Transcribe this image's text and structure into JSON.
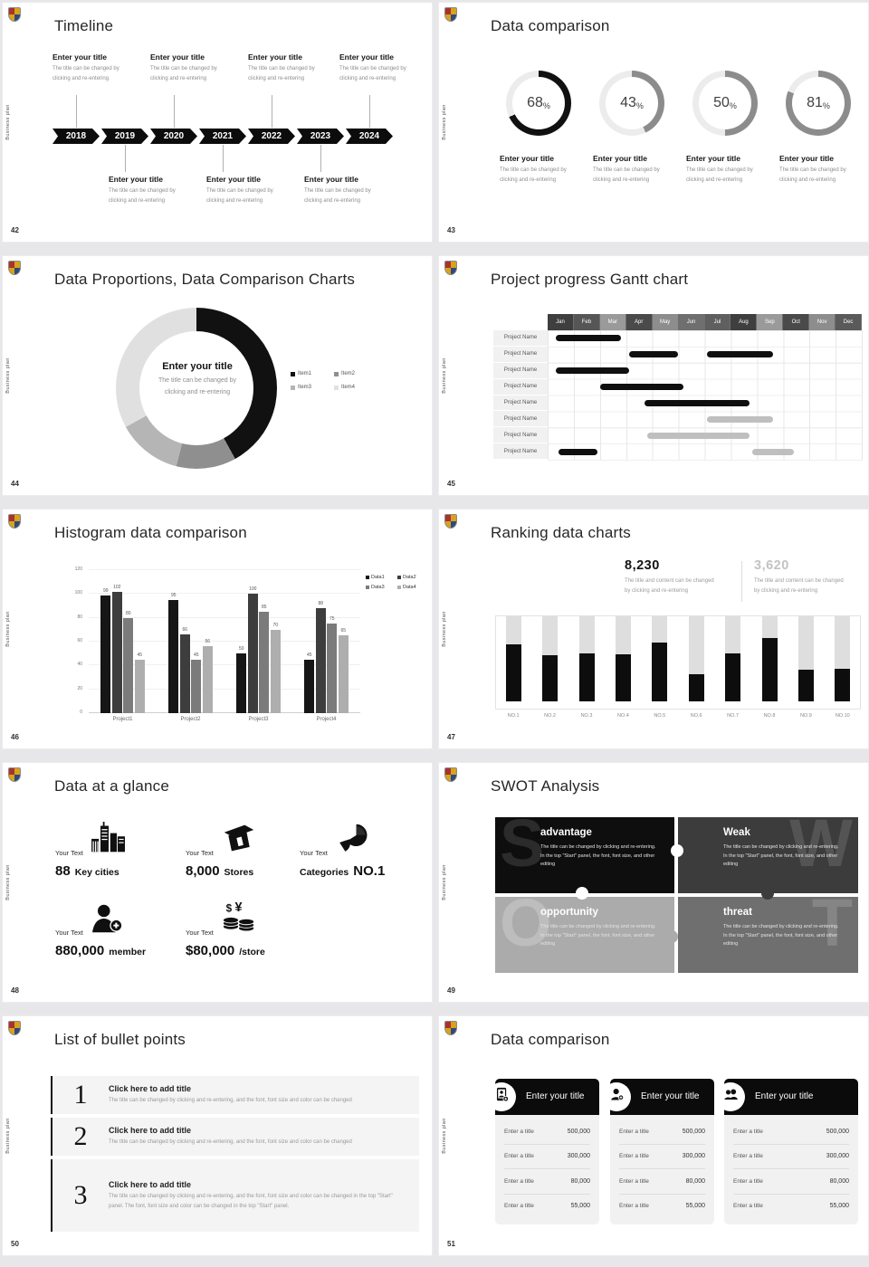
{
  "common": {
    "brand": "Business plan"
  },
  "slides": [
    {
      "number": "42",
      "title": "Timeline",
      "years": [
        "2018",
        "2019",
        "2020",
        "2021",
        "2022",
        "2023",
        "2024"
      ],
      "top_entries": [
        0,
        2,
        4,
        6
      ],
      "bottom_entries": [
        1,
        3,
        5
      ],
      "entry": {
        "title": "Enter your title",
        "line1": "The title can be changed by",
        "line2": "clicking and re-entering"
      }
    },
    {
      "number": "43",
      "title": "Data comparison",
      "chart_data": {
        "type": "donut-rings",
        "values": [
          68,
          43,
          50,
          81
        ],
        "unit": "%",
        "colors": [
          "#111111",
          "#8c8c8c",
          "#8c8c8c",
          "#8c8c8c"
        ],
        "track": "#ececec"
      },
      "entry": {
        "title": "Enter your title",
        "line1": "The title can be changed by",
        "line2": "clicking and re-entering"
      }
    },
    {
      "number": "44",
      "title": "Data Proportions, Data Comparison Charts",
      "chart_data": {
        "type": "pie",
        "legend": [
          "Item1",
          "Item2",
          "Item3",
          "Item4"
        ],
        "values": [
          42,
          12,
          13,
          33
        ],
        "colors": [
          "#111111",
          "#8f8f8f",
          "#b5b5b5",
          "#e0e0e0"
        ]
      },
      "center": {
        "title": "Enter your title",
        "line1": "The title can be changed by",
        "line2": "clicking and re-entering"
      }
    },
    {
      "number": "45",
      "title": "Project progress Gantt chart",
      "months": [
        "Jan",
        "Feb",
        "Mar",
        "Apr",
        "May",
        "Jun",
        "Jul",
        "Aug",
        "Sep",
        "Oct",
        "Nov",
        "Dec"
      ],
      "month_colors": [
        "#3f3f3f",
        "#565656",
        "#9a9a9a",
        "#4a4a4a",
        "#8d8d8d",
        "#6f6f6f",
        "#5f5f5f",
        "#3f3f3f",
        "#9a9a9a",
        "#4a4a4a",
        "#8d8d8d",
        "#5a5a5a"
      ],
      "row_label": "Project Name",
      "bars": [
        [
          {
            "start": 0.3,
            "end": 2.8,
            "color": "black"
          }
        ],
        [
          {
            "start": 3.1,
            "end": 5.0,
            "color": "black"
          },
          {
            "start": 6.1,
            "end": 8.6,
            "color": "black"
          }
        ],
        [
          {
            "start": 0.3,
            "end": 3.1,
            "color": "black"
          }
        ],
        [
          {
            "start": 2.0,
            "end": 5.2,
            "color": "black"
          }
        ],
        [
          {
            "start": 3.7,
            "end": 7.7,
            "color": "black"
          }
        ],
        [
          {
            "start": 6.1,
            "end": 8.6,
            "color": "gray"
          }
        ],
        [
          {
            "start": 3.8,
            "end": 7.7,
            "color": "gray"
          }
        ],
        [
          {
            "start": 0.4,
            "end": 1.9,
            "color": "black"
          },
          {
            "start": 7.8,
            "end": 9.4,
            "color": "gray"
          }
        ]
      ]
    },
    {
      "number": "46",
      "title": "Histogram data comparison",
      "chart_data": {
        "type": "bar",
        "categories": [
          "Project1",
          "Project2",
          "Project3",
          "Project4"
        ],
        "series": [
          {
            "name": "Data1",
            "values": [
              99,
              95,
              50,
              45
            ]
          },
          {
            "name": "Data2",
            "values": [
              102,
              66,
              100,
              88
            ]
          },
          {
            "name": "Data3",
            "values": [
              80,
              45,
              85,
              75
            ]
          },
          {
            "name": "Data4",
            "values": [
              45,
              56,
              70,
              65
            ]
          }
        ],
        "colors": [
          "#161616",
          "#3d3d3d",
          "#7b7b7b",
          "#aeaeae"
        ],
        "ylim": [
          0,
          120
        ],
        "ytick_step": 20,
        "grid": true,
        "legend_position": "top-right"
      }
    },
    {
      "number": "47",
      "title": "Ranking data charts",
      "stats": [
        {
          "value": "8,230",
          "line1": "The title and content can be changed",
          "line2": "by clicking and re-entering"
        },
        {
          "value": "3,620",
          "line1": "The title and content can be changed",
          "line2": "by clicking and re-entering"
        }
      ],
      "chart_data": {
        "type": "bar",
        "categories": [
          "NO.1",
          "NO.2",
          "NO.3",
          "NO.4",
          "NO.5",
          "NO.6",
          "NO.7",
          "NO.8",
          "NO.9",
          "NO.10"
        ],
        "values_pct": [
          67,
          54,
          56,
          55,
          69,
          32,
          56,
          74,
          37,
          38
        ],
        "bar_color": "#0d0d0d",
        "track_color": "#dedede"
      }
    },
    {
      "number": "48",
      "title": "Data at a glance",
      "stats": [
        {
          "label": "Your Text",
          "icon": "city-icon",
          "parts": [
            {
              "text": "88",
              "big": true
            },
            {
              "text": "Key cities",
              "big": false
            }
          ]
        },
        {
          "label": "Your Text",
          "icon": "store-icon",
          "parts": [
            {
              "text": "8,000",
              "big": true
            },
            {
              "text": "Stores",
              "big": false
            }
          ]
        },
        {
          "label": "Your Text",
          "icon": "pie-icon",
          "parts": [
            {
              "text": "Categories",
              "big": false
            },
            {
              "text": "NO.1",
              "big": true
            }
          ]
        },
        {
          "label": "Your Text",
          "icon": "member-icon",
          "parts": [
            {
              "text": "880,000",
              "big": true
            },
            {
              "text": "member",
              "big": false
            }
          ]
        },
        {
          "label": "Your Text",
          "icon": "coins-icon",
          "parts": [
            {
              "text": "$80,000",
              "big": true
            },
            {
              "text": "/store",
              "big": false
            }
          ]
        }
      ]
    },
    {
      "number": "49",
      "title": "SWOT Analysis",
      "quadrants": [
        {
          "letter": "S",
          "title": "advantage",
          "body": "The title can be changed by clicking and re-entering. In the top \"Start\" panel, the font, font size, and other editing",
          "bg": "#0e0e0e",
          "letter_color": "#2b2b2b"
        },
        {
          "letter": "W",
          "title": "Weak",
          "body": "The title can be changed by clicking and re-entering. In the top \"Start\" panel, the font, font size, and other editing",
          "bg": "#3c3c3c",
          "letter_color": "#545454"
        },
        {
          "letter": "O",
          "title": "opportunity",
          "body": "The title can be changed by clicking and re-entering. In the top \"Start\" panel, the font, font size, and other editing",
          "bg": "#ababab",
          "letter_color": "#bdbdbd"
        },
        {
          "letter": "T",
          "title": "threat",
          "body": "The title can be changed by clicking and re-entering. In the top \"Start\" panel, the font, font size, and other editing",
          "bg": "#6f6f6f",
          "letter_color": "#858585"
        }
      ]
    },
    {
      "number": "50",
      "title": "List of bullet points",
      "items": [
        {
          "num": "1",
          "title": "Click here to add title",
          "body": "The title can be changed by clicking and re-entering, and the font, font size and color can be changed"
        },
        {
          "num": "2",
          "title": "Click here to add title",
          "body": "The title can be changed by clicking and re-entering, and the font, font size and color can be changed"
        },
        {
          "num": "3",
          "title": "Click here to add title",
          "body": "The title can be changed by clicking and re-entering, and the font, font size and color can be changed in the top \"Start\" panel. The font, font size and color can be changed in the top \"Start\" panel."
        }
      ]
    },
    {
      "number": "51",
      "title": "Data comparison",
      "cards": [
        {
          "icon": "device-user-icon",
          "title": "Enter your title",
          "rows": [
            {
              "label": "Enter a title",
              "value": "500,000"
            },
            {
              "label": "Enter a title",
              "value": "300,000"
            },
            {
              "label": "Enter a title",
              "value": "80,000"
            },
            {
              "label": "Enter a title",
              "value": "55,000"
            }
          ]
        },
        {
          "icon": "user-plus-icon",
          "title": "Enter your title",
          "rows": [
            {
              "label": "Enter a title",
              "value": "500,000"
            },
            {
              "label": "Enter a title",
              "value": "300,000"
            },
            {
              "label": "Enter a title",
              "value": "80,000"
            },
            {
              "label": "Enter a title",
              "value": "55,000"
            }
          ]
        },
        {
          "icon": "users-icon",
          "title": "Enter your title",
          "rows": [
            {
              "label": "Enter a title",
              "value": "500,000"
            },
            {
              "label": "Enter a title",
              "value": "300,000"
            },
            {
              "label": "Enter a title",
              "value": "80,000"
            },
            {
              "label": "Enter a title",
              "value": "55,000"
            }
          ]
        }
      ]
    }
  ]
}
